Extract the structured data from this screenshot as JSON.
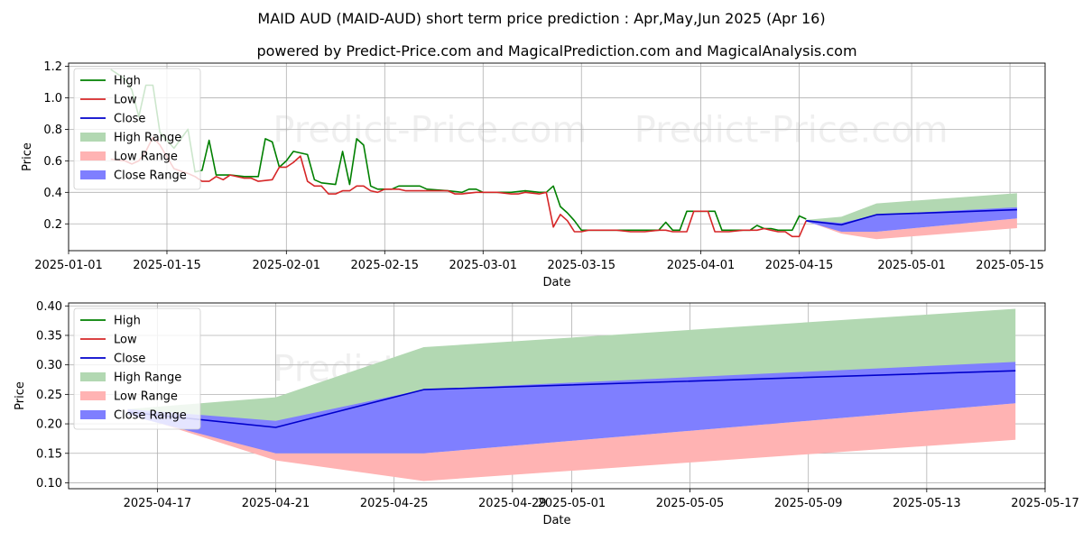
{
  "title": "MAID AUD (MAID-AUD) short term price prediction : Apr,May,Jun 2025 (Apr 16)",
  "subtitle": "powered by Predict-Price.com and MagicalPrediction.com and MagicalAnalysis.com",
  "watermark": "Predict-Price.com",
  "colors": {
    "high": "#008000",
    "low": "#d62728",
    "close": "#0000cc",
    "high_range": "#b2d8b2",
    "low_range": "#ffb3b3",
    "close_range": "#7f7fff"
  },
  "chart_data": [
    {
      "type": "line",
      "xlabel": "Date",
      "ylabel": "Price",
      "x_type": "date",
      "xlim": [
        "2025-01-01",
        "2025-05-20"
      ],
      "ylim": [
        0.03,
        1.22
      ],
      "x_ticks": [
        "2025-01-01",
        "2025-01-15",
        "2025-02-01",
        "2025-02-15",
        "2025-03-01",
        "2025-03-15",
        "2025-04-01",
        "2025-04-15",
        "2025-05-01",
        "2025-05-15"
      ],
      "y_ticks": [
        "0.2",
        "0.4",
        "0.6",
        "0.8",
        "1.0",
        "1.2"
      ],
      "grid": true,
      "legend": "top-left",
      "legend_entries": [
        "High",
        "Low",
        "Close",
        "High Range",
        "Low Range",
        "Close Range"
      ],
      "series": [
        {
          "name": "High",
          "points": [
            [
              "2025-01-07",
              1.18
            ],
            [
              "2025-01-09",
              1.12
            ],
            [
              "2025-01-10",
              1.05
            ],
            [
              "2025-01-11",
              0.88
            ],
            [
              "2025-01-12",
              1.08
            ],
            [
              "2025-01-13",
              1.08
            ],
            [
              "2025-01-14",
              0.78
            ],
            [
              "2025-01-16",
              0.68
            ],
            [
              "2025-01-18",
              0.8
            ],
            [
              "2025-01-19",
              0.53
            ],
            [
              "2025-01-20",
              0.54
            ],
            [
              "2025-01-21",
              0.73
            ],
            [
              "2025-01-22",
              0.51
            ],
            [
              "2025-01-23",
              0.51
            ],
            [
              "2025-01-24",
              0.51
            ],
            [
              "2025-01-26",
              0.5
            ],
            [
              "2025-01-28",
              0.5
            ],
            [
              "2025-01-29",
              0.74
            ],
            [
              "2025-01-30",
              0.72
            ],
            [
              "2025-01-31",
              0.56
            ],
            [
              "2025-02-01",
              0.6
            ],
            [
              "2025-02-02",
              0.66
            ],
            [
              "2025-02-03",
              0.65
            ],
            [
              "2025-02-04",
              0.64
            ],
            [
              "2025-02-05",
              0.48
            ],
            [
              "2025-02-06",
              0.46
            ],
            [
              "2025-02-08",
              0.45
            ],
            [
              "2025-02-09",
              0.66
            ],
            [
              "2025-02-10",
              0.45
            ],
            [
              "2025-02-11",
              0.74
            ],
            [
              "2025-02-12",
              0.7
            ],
            [
              "2025-02-13",
              0.44
            ],
            [
              "2025-02-14",
              0.42
            ],
            [
              "2025-02-16",
              0.42
            ],
            [
              "2025-02-17",
              0.44
            ],
            [
              "2025-02-18",
              0.44
            ],
            [
              "2025-02-20",
              0.44
            ],
            [
              "2025-02-21",
              0.42
            ],
            [
              "2025-02-24",
              0.41
            ],
            [
              "2025-02-26",
              0.4
            ],
            [
              "2025-02-27",
              0.42
            ],
            [
              "2025-02-28",
              0.42
            ],
            [
              "2025-03-01",
              0.4
            ],
            [
              "2025-03-03",
              0.4
            ],
            [
              "2025-03-05",
              0.4
            ],
            [
              "2025-03-07",
              0.41
            ],
            [
              "2025-03-09",
              0.4
            ],
            [
              "2025-03-10",
              0.4
            ],
            [
              "2025-03-11",
              0.44
            ],
            [
              "2025-03-12",
              0.31
            ],
            [
              "2025-03-13",
              0.27
            ],
            [
              "2025-03-14",
              0.22
            ],
            [
              "2025-03-15",
              0.16
            ],
            [
              "2025-03-17",
              0.16
            ],
            [
              "2025-03-20",
              0.16
            ],
            [
              "2025-03-22",
              0.16
            ],
            [
              "2025-03-25",
              0.16
            ],
            [
              "2025-03-26",
              0.16
            ],
            [
              "2025-03-27",
              0.21
            ],
            [
              "2025-03-28",
              0.16
            ],
            [
              "2025-03-29",
              0.16
            ],
            [
              "2025-03-30",
              0.28
            ],
            [
              "2025-03-31",
              0.28
            ],
            [
              "2025-04-02",
              0.28
            ],
            [
              "2025-04-03",
              0.28
            ],
            [
              "2025-04-04",
              0.16
            ],
            [
              "2025-04-05",
              0.16
            ],
            [
              "2025-04-07",
              0.16
            ],
            [
              "2025-04-08",
              0.16
            ],
            [
              "2025-04-09",
              0.19
            ],
            [
              "2025-04-10",
              0.17
            ],
            [
              "2025-04-11",
              0.17
            ],
            [
              "2025-04-12",
              0.16
            ],
            [
              "2025-04-13",
              0.16
            ],
            [
              "2025-04-14",
              0.16
            ],
            [
              "2025-04-15",
              0.25
            ],
            [
              "2025-04-16",
              0.23
            ]
          ]
        },
        {
          "name": "Low",
          "points": [
            [
              "2025-01-07",
              0.61
            ],
            [
              "2025-01-09",
              0.6
            ],
            [
              "2025-01-10",
              0.58
            ],
            [
              "2025-01-11",
              0.6
            ],
            [
              "2025-01-12",
              0.66
            ],
            [
              "2025-01-13",
              0.75
            ],
            [
              "2025-01-14",
              0.7
            ],
            [
              "2025-01-16",
              0.55
            ],
            [
              "2025-01-18",
              0.52
            ],
            [
              "2025-01-19",
              0.5
            ],
            [
              "2025-01-20",
              0.47
            ],
            [
              "2025-01-21",
              0.47
            ],
            [
              "2025-01-22",
              0.5
            ],
            [
              "2025-01-23",
              0.48
            ],
            [
              "2025-01-24",
              0.51
            ],
            [
              "2025-01-26",
              0.49
            ],
            [
              "2025-01-27",
              0.49
            ],
            [
              "2025-01-28",
              0.47
            ],
            [
              "2025-01-30",
              0.48
            ],
            [
              "2025-01-31",
              0.56
            ],
            [
              "2025-02-01",
              0.56
            ],
            [
              "2025-02-02",
              0.59
            ],
            [
              "2025-02-03",
              0.63
            ],
            [
              "2025-02-04",
              0.47
            ],
            [
              "2025-02-05",
              0.44
            ],
            [
              "2025-02-06",
              0.44
            ],
            [
              "2025-02-07",
              0.39
            ],
            [
              "2025-02-08",
              0.39
            ],
            [
              "2025-02-09",
              0.41
            ],
            [
              "2025-02-10",
              0.41
            ],
            [
              "2025-02-11",
              0.44
            ],
            [
              "2025-02-12",
              0.44
            ],
            [
              "2025-02-13",
              0.41
            ],
            [
              "2025-02-14",
              0.4
            ],
            [
              "2025-02-15",
              0.42
            ],
            [
              "2025-02-16",
              0.42
            ],
            [
              "2025-02-17",
              0.42
            ],
            [
              "2025-02-18",
              0.41
            ],
            [
              "2025-02-20",
              0.41
            ],
            [
              "2025-02-24",
              0.41
            ],
            [
              "2025-02-25",
              0.39
            ],
            [
              "2025-02-26",
              0.39
            ],
            [
              "2025-02-28",
              0.4
            ],
            [
              "2025-03-01",
              0.4
            ],
            [
              "2025-03-03",
              0.4
            ],
            [
              "2025-03-05",
              0.39
            ],
            [
              "2025-03-06",
              0.39
            ],
            [
              "2025-03-07",
              0.4
            ],
            [
              "2025-03-09",
              0.39
            ],
            [
              "2025-03-10",
              0.4
            ],
            [
              "2025-03-11",
              0.18
            ],
            [
              "2025-03-12",
              0.26
            ],
            [
              "2025-03-13",
              0.22
            ],
            [
              "2025-03-14",
              0.15
            ],
            [
              "2025-03-15",
              0.15
            ],
            [
              "2025-03-16",
              0.16
            ],
            [
              "2025-03-20",
              0.16
            ],
            [
              "2025-03-22",
              0.15
            ],
            [
              "2025-03-24",
              0.15
            ],
            [
              "2025-03-26",
              0.16
            ],
            [
              "2025-03-27",
              0.16
            ],
            [
              "2025-03-28",
              0.15
            ],
            [
              "2025-03-29",
              0.15
            ],
            [
              "2025-03-30",
              0.15
            ],
            [
              "2025-03-31",
              0.28
            ],
            [
              "2025-04-02",
              0.28
            ],
            [
              "2025-04-03",
              0.15
            ],
            [
              "2025-04-05",
              0.15
            ],
            [
              "2025-04-07",
              0.16
            ],
            [
              "2025-04-08",
              0.16
            ],
            [
              "2025-04-09",
              0.16
            ],
            [
              "2025-04-10",
              0.17
            ],
            [
              "2025-04-11",
              0.16
            ],
            [
              "2025-04-12",
              0.15
            ],
            [
              "2025-04-13",
              0.15
            ],
            [
              "2025-04-14",
              0.12
            ],
            [
              "2025-04-15",
              0.12
            ],
            [
              "2025-04-16",
              0.22
            ]
          ]
        },
        {
          "name": "Close",
          "points": [
            [
              "2025-04-16",
              0.22
            ],
            [
              "2025-04-21",
              0.194
            ],
            [
              "2025-04-26",
              0.258
            ],
            [
              "2025-05-16",
              0.29
            ]
          ]
        },
        {
          "name": "High Range",
          "upper": [
            [
              "2025-04-16",
              0.225
            ],
            [
              "2025-04-21",
              0.245
            ],
            [
              "2025-04-26",
              0.33
            ],
            [
              "2025-05-16",
              0.395
            ]
          ],
          "lower": [
            [
              "2025-04-16",
              0.215
            ],
            [
              "2025-04-21",
              0.15
            ],
            [
              "2025-04-26",
              0.15
            ],
            [
              "2025-05-16",
              0.305
            ]
          ]
        },
        {
          "name": "Low Range",
          "upper": [
            [
              "2025-04-16",
              0.222
            ],
            [
              "2025-04-21",
              0.15
            ],
            [
              "2025-04-26",
              0.15
            ],
            [
              "2025-05-16",
              0.235
            ]
          ],
          "lower": [
            [
              "2025-04-16",
              0.218
            ],
            [
              "2025-04-21",
              0.138
            ],
            [
              "2025-04-26",
              0.103
            ],
            [
              "2025-05-16",
              0.173
            ]
          ]
        },
        {
          "name": "Close Range",
          "upper": [
            [
              "2025-04-16",
              0.225
            ],
            [
              "2025-04-21",
              0.205
            ],
            [
              "2025-04-26",
              0.258
            ],
            [
              "2025-05-16",
              0.305
            ]
          ],
          "lower": [
            [
              "2025-04-16",
              0.215
            ],
            [
              "2025-04-21",
              0.15
            ],
            [
              "2025-04-26",
              0.15
            ],
            [
              "2025-05-16",
              0.235
            ]
          ]
        }
      ]
    },
    {
      "type": "line",
      "xlabel": "Date",
      "ylabel": "Price",
      "x_type": "date",
      "xlim": [
        "2025-04-14",
        "2025-05-17"
      ],
      "ylim": [
        0.09,
        0.405
      ],
      "x_ticks": [
        "2025-04-17",
        "2025-04-21",
        "2025-04-25",
        "2025-04-29",
        "2025-05-01",
        "2025-05-05",
        "2025-05-09",
        "2025-05-13",
        "2025-05-17"
      ],
      "y_ticks": [
        "0.10",
        "0.15",
        "0.20",
        "0.25",
        "0.30",
        "0.35",
        "0.40"
      ],
      "grid": true,
      "legend": "top-left",
      "legend_entries": [
        "High",
        "Low",
        "Close",
        "High Range",
        "Low Range",
        "Close Range"
      ],
      "series": [
        {
          "name": "Close",
          "points": [
            [
              "2025-04-16",
              0.22
            ],
            [
              "2025-04-21",
              0.194
            ],
            [
              "2025-04-26",
              0.258
            ],
            [
              "2025-05-16",
              0.29
            ]
          ]
        },
        {
          "name": "High Range",
          "upper": [
            [
              "2025-04-16",
              0.225
            ],
            [
              "2025-04-21",
              0.245
            ],
            [
              "2025-04-26",
              0.33
            ],
            [
              "2025-05-16",
              0.395
            ]
          ],
          "lower": [
            [
              "2025-04-16",
              0.215
            ],
            [
              "2025-04-21",
              0.15
            ],
            [
              "2025-04-26",
              0.15
            ],
            [
              "2025-05-16",
              0.305
            ]
          ]
        },
        {
          "name": "Low Range",
          "upper": [
            [
              "2025-04-16",
              0.222
            ],
            [
              "2025-04-21",
              0.15
            ],
            [
              "2025-04-26",
              0.15
            ],
            [
              "2025-05-16",
              0.235
            ]
          ],
          "lower": [
            [
              "2025-04-16",
              0.218
            ],
            [
              "2025-04-21",
              0.138
            ],
            [
              "2025-04-26",
              0.103
            ],
            [
              "2025-05-16",
              0.173
            ]
          ]
        },
        {
          "name": "Close Range",
          "upper": [
            [
              "2025-04-16",
              0.225
            ],
            [
              "2025-04-21",
              0.205
            ],
            [
              "2025-04-26",
              0.258
            ],
            [
              "2025-05-16",
              0.305
            ]
          ],
          "lower": [
            [
              "2025-04-16",
              0.215
            ],
            [
              "2025-04-21",
              0.15
            ],
            [
              "2025-04-26",
              0.15
            ],
            [
              "2025-05-16",
              0.235
            ]
          ]
        }
      ]
    }
  ]
}
